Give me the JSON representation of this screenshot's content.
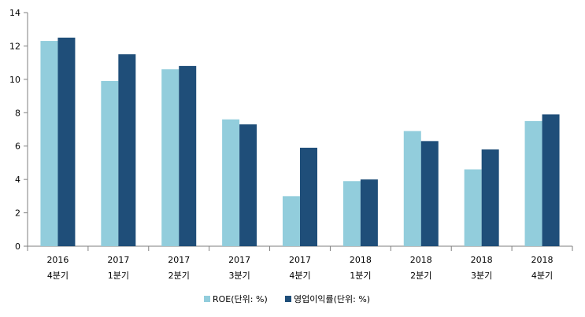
{
  "chart_data": {
    "type": "bar",
    "title": "",
    "xlabel": "",
    "ylabel": "",
    "ylim": [
      0,
      14
    ],
    "yticks": [
      0,
      2,
      4,
      6,
      8,
      10,
      12,
      14
    ],
    "grid": false,
    "legend_position": "bottom",
    "categories": [
      {
        "year": "2016",
        "quarter": "4분기"
      },
      {
        "year": "2017",
        "quarter": "1분기"
      },
      {
        "year": "2017",
        "quarter": "2분기"
      },
      {
        "year": "2017",
        "quarter": "3분기"
      },
      {
        "year": "2017",
        "quarter": "4분기"
      },
      {
        "year": "2018",
        "quarter": "1분기"
      },
      {
        "year": "2018",
        "quarter": "2분기"
      },
      {
        "year": "2018",
        "quarter": "3분기"
      },
      {
        "year": "2018",
        "quarter": "4분기"
      }
    ],
    "series": [
      {
        "name": "ROE(단위: %)",
        "color": "#92cddc",
        "values": [
          12.3,
          9.9,
          10.6,
          7.6,
          3.0,
          3.9,
          6.9,
          4.6,
          7.5
        ]
      },
      {
        "name": "영업이익률(단위: %)",
        "color": "#1f4e79",
        "values": [
          12.5,
          11.5,
          10.8,
          7.3,
          5.9,
          4.0,
          6.3,
          5.8,
          7.9
        ]
      }
    ]
  }
}
